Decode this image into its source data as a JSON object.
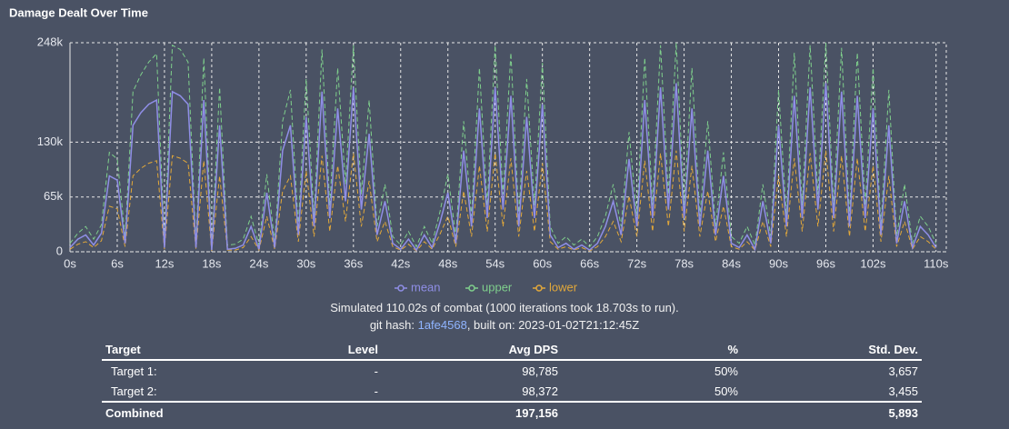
{
  "chart_data": {
    "type": "line",
    "title": "Damage Dealt Over Time",
    "x": [
      0,
      1,
      2,
      3,
      4,
      5,
      6,
      7,
      8,
      9,
      10,
      11,
      12,
      13,
      14,
      15,
      16,
      17,
      18,
      19,
      20,
      21,
      22,
      23,
      24,
      25,
      26,
      27,
      28,
      29,
      30,
      31,
      32,
      33,
      34,
      35,
      36,
      37,
      38,
      39,
      40,
      41,
      42,
      43,
      44,
      45,
      46,
      47,
      48,
      49,
      50,
      51,
      52,
      53,
      54,
      55,
      56,
      57,
      58,
      59,
      60,
      61,
      62,
      63,
      64,
      65,
      66,
      67,
      68,
      69,
      70,
      71,
      72,
      73,
      74,
      75,
      76,
      77,
      78,
      79,
      80,
      81,
      82,
      83,
      84,
      85,
      86,
      87,
      88,
      89,
      90,
      91,
      92,
      93,
      94,
      95,
      96,
      97,
      98,
      99,
      100,
      101,
      102,
      103,
      104,
      105,
      106,
      107,
      108,
      109,
      110
    ],
    "series": [
      {
        "name": "mean",
        "color": "#8f8ee6",
        "dashed": false,
        "values": [
          5000,
          15000,
          20000,
          8000,
          22000,
          90000,
          85000,
          10000,
          150000,
          165000,
          175000,
          180000,
          5000,
          190000,
          185000,
          175000,
          5000,
          180000,
          2000,
          150000,
          3000,
          4000,
          8000,
          30000,
          3000,
          70000,
          5000,
          120000,
          150000,
          20000,
          160000,
          30000,
          190000,
          40000,
          170000,
          60000,
          195000,
          50000,
          140000,
          20000,
          60000,
          10000,
          3000,
          15000,
          2000,
          20000,
          5000,
          35000,
          70000,
          10000,
          120000,
          30000,
          170000,
          40000,
          195000,
          50000,
          185000,
          30000,
          160000,
          40000,
          175000,
          20000,
          5000,
          10000,
          3000,
          8000,
          2000,
          10000,
          30000,
          60000,
          20000,
          110000,
          30000,
          180000,
          40000,
          195000,
          50000,
          200000,
          40000,
          170000,
          30000,
          120000,
          20000,
          90000,
          10000,
          5000,
          20000,
          3000,
          60000,
          10000,
          150000,
          30000,
          185000,
          40000,
          195000,
          50000,
          200000,
          40000,
          190000,
          30000,
          185000,
          40000,
          170000,
          20000,
          150000,
          10000,
          60000,
          5000,
          30000,
          20000,
          5000
        ]
      },
      {
        "name": "upper",
        "color": "#7fcf8c",
        "dashed": true,
        "values": [
          10000,
          22000,
          30000,
          15000,
          32000,
          118000,
          110000,
          18000,
          190000,
          210000,
          225000,
          235000,
          10000,
          245000,
          240000,
          225000,
          10000,
          230000,
          6000,
          195000,
          8000,
          9000,
          15000,
          42000,
          8000,
          92000,
          12000,
          155000,
          192000,
          30000,
          205000,
          42000,
          240000,
          55000,
          218000,
          80000,
          245000,
          68000,
          180000,
          30000,
          80000,
          18000,
          8000,
          24000,
          6000,
          30000,
          10000,
          48000,
          92000,
          18000,
          155000,
          42000,
          218000,
          55000,
          245000,
          68000,
          236000,
          42000,
          205000,
          55000,
          224000,
          30000,
          10000,
          18000,
          8000,
          15000,
          6000,
          18000,
          42000,
          80000,
          30000,
          142000,
          42000,
          230000,
          55000,
          245000,
          68000,
          248000,
          55000,
          218000,
          42000,
          155000,
          30000,
          118000,
          18000,
          10000,
          30000,
          8000,
          80000,
          18000,
          192000,
          42000,
          236000,
          55000,
          245000,
          68000,
          248000,
          55000,
          242000,
          42000,
          236000,
          55000,
          218000,
          30000,
          192000,
          18000,
          80000,
          10000,
          42000,
          30000,
          10000
        ]
      },
      {
        "name": "lower",
        "color": "#e2a83a",
        "dashed": true,
        "values": [
          3000,
          9000,
          12000,
          5000,
          13000,
          54000,
          51000,
          6000,
          90000,
          99000,
          105000,
          108000,
          3000,
          114000,
          111000,
          105000,
          3000,
          108000,
          1000,
          90000,
          2000,
          2000,
          5000,
          18000,
          2000,
          42000,
          3000,
          72000,
          90000,
          12000,
          96000,
          18000,
          114000,
          24000,
          102000,
          36000,
          117000,
          30000,
          84000,
          12000,
          36000,
          6000,
          2000,
          9000,
          1000,
          12000,
          3000,
          21000,
          42000,
          6000,
          72000,
          18000,
          102000,
          24000,
          117000,
          30000,
          111000,
          18000,
          96000,
          24000,
          105000,
          12000,
          3000,
          6000,
          2000,
          5000,
          1000,
          6000,
          18000,
          36000,
          12000,
          66000,
          18000,
          108000,
          24000,
          117000,
          30000,
          120000,
          24000,
          102000,
          18000,
          72000,
          12000,
          54000,
          6000,
          3000,
          12000,
          2000,
          36000,
          6000,
          90000,
          18000,
          111000,
          24000,
          117000,
          30000,
          120000,
          24000,
          114000,
          18000,
          111000,
          24000,
          102000,
          12000,
          90000,
          6000,
          36000,
          3000,
          18000,
          12000,
          3000
        ]
      }
    ],
    "xlim": [
      0,
      111.3
    ],
    "ylim": [
      0,
      248000
    ],
    "xticks": [
      {
        "value": 0,
        "label": "0s"
      },
      {
        "value": 6,
        "label": "6s"
      },
      {
        "value": 12,
        "label": "12s"
      },
      {
        "value": 18,
        "label": "18s"
      },
      {
        "value": 24,
        "label": "24s"
      },
      {
        "value": 30,
        "label": "30s"
      },
      {
        "value": 36,
        "label": "36s"
      },
      {
        "value": 42,
        "label": "42s"
      },
      {
        "value": 48,
        "label": "48s"
      },
      {
        "value": 54,
        "label": "54s"
      },
      {
        "value": 60,
        "label": "60s"
      },
      {
        "value": 66,
        "label": "66s"
      },
      {
        "value": 72,
        "label": "72s"
      },
      {
        "value": 78,
        "label": "78s"
      },
      {
        "value": 84,
        "label": "84s"
      },
      {
        "value": 90,
        "label": "90s"
      },
      {
        "value": 96,
        "label": "96s"
      },
      {
        "value": 102,
        "label": "102s"
      },
      {
        "value": 110,
        "label": "110s"
      }
    ],
    "yticks": [
      0,
      {
        "value": 65000,
        "label": "65k"
      },
      {
        "value": 130000,
        "label": "130k"
      },
      {
        "value": 248000,
        "label": "248k"
      }
    ],
    "grid": true
  },
  "caption": {
    "line1": "Simulated 110.02s of combat (1000 iterations took 18.703s to run).",
    "git_label": "git hash:",
    "hash": "1afe4568",
    "built": ", built on: 2023-01-02T21:12:45Z"
  },
  "table": {
    "headers": [
      "Target",
      "Level",
      "Avg DPS",
      "%",
      "Std. Dev."
    ],
    "rows": [
      [
        "Target 1:",
        "-",
        "98,785",
        "50%",
        "3,657"
      ],
      [
        "Target 2:",
        "-",
        "98,372",
        "50%",
        "3,455"
      ]
    ],
    "total": {
      "label": "Combined",
      "dps": "197,156",
      "std": "5,893"
    }
  }
}
